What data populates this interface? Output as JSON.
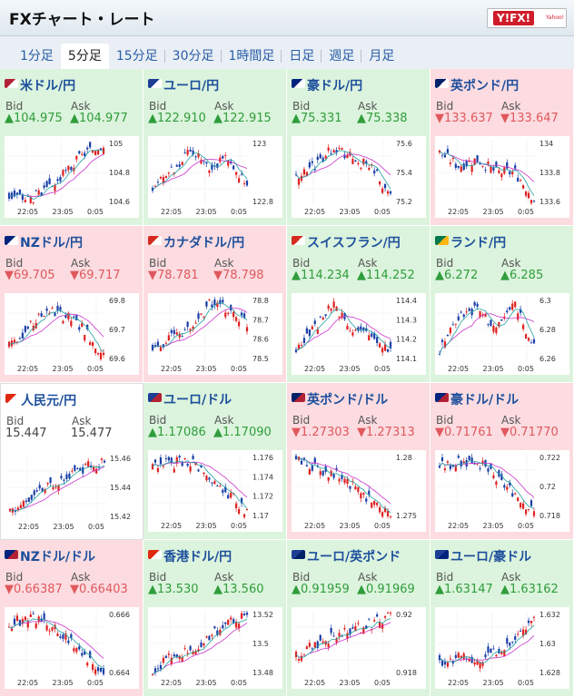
{
  "header": {
    "title": "FXチャート・レート",
    "logo": "Y!FX!",
    "logo_sub": "Yahoo!"
  },
  "tabs": [
    {
      "label": "1分足",
      "active": false
    },
    {
      "label": "5分足",
      "active": true
    },
    {
      "label": "15分足",
      "active": false
    },
    {
      "label": "30分足",
      "active": false
    },
    {
      "label": "1時間足",
      "active": false
    },
    {
      "label": "日足",
      "active": false
    },
    {
      "label": "週足",
      "active": false
    },
    {
      "label": "月足",
      "active": false
    }
  ],
  "labels": {
    "bid": "Bid",
    "ask": "Ask"
  },
  "colors": {
    "up_bg": "#dcf4dd",
    "down_bg": "#fcdce0",
    "up": "#2e9d3a",
    "down": "#e0585d",
    "link": "#1d4f9c",
    "candle_up": "#e02020",
    "candle_down": "#1a3ea8",
    "ma": "#cc33cc",
    "ma_short": "#20a0a0"
  },
  "pairs": [
    {
      "name": "米ドル/円",
      "flag_icon": "us-jp-flag",
      "dir": "up",
      "bid": "▲104.975",
      "ask": "▲104.977",
      "yticks": [
        "105",
        "104.8",
        "104.6"
      ],
      "xticks": [
        "22:05",
        "23:05",
        "0:05"
      ]
    },
    {
      "name": "ユーロ/円",
      "flag_icon": "eu-jp-flag",
      "dir": "up",
      "bid": "▲122.910",
      "ask": "▲122.915",
      "yticks": [
        "123",
        "122.8"
      ],
      "xticks": [
        "22:05",
        "23:05",
        "0:05"
      ]
    },
    {
      "name": "豪ドル/円",
      "flag_icon": "au-jp-flag",
      "dir": "up",
      "bid": "▲75.331",
      "ask": "▲75.338",
      "yticks": [
        "75.6",
        "75.4",
        "75.2"
      ],
      "xticks": [
        "22:05",
        "23:05",
        "0:05"
      ]
    },
    {
      "name": "英ポンド/円",
      "flag_icon": "gb-jp-flag",
      "dir": "down",
      "bid": "▼133.637",
      "ask": "▼133.647",
      "yticks": [
        "134",
        "133.8",
        "133.6"
      ],
      "xticks": [
        "22:05",
        "23:05",
        "0:05"
      ]
    },
    {
      "name": "NZドル/円",
      "flag_icon": "nz-jp-flag",
      "dir": "down",
      "bid": "▼69.705",
      "ask": "▼69.717",
      "yticks": [
        "69.8",
        "69.7",
        "69.6"
      ],
      "xticks": [
        "22:05",
        "23:05",
        "0:05"
      ]
    },
    {
      "name": "カナダドル/円",
      "flag_icon": "ca-jp-flag",
      "dir": "down",
      "bid": "▼78.781",
      "ask": "▼78.798",
      "yticks": [
        "78.8",
        "78.7",
        "78.6",
        "78.5"
      ],
      "xticks": [
        "22:05",
        "23:05",
        "0:05"
      ]
    },
    {
      "name": "スイスフラン/円",
      "flag_icon": "ch-jp-flag",
      "dir": "up",
      "bid": "▲114.234",
      "ask": "▲114.252",
      "yticks": [
        "114.4",
        "114.3",
        "114.2",
        "114.1"
      ],
      "xticks": [
        "22:05",
        "23:05",
        "0:05"
      ]
    },
    {
      "name": "ランド/円",
      "flag_icon": "za-jp-flag",
      "dir": "up",
      "bid": "▲6.272",
      "ask": "▲6.285",
      "yticks": [
        "6.3",
        "6.28",
        "6.26"
      ],
      "xticks": [
        "22:05",
        "23:05",
        "0:05"
      ]
    },
    {
      "name": "人民元/円",
      "flag_icon": "cn-jp-flag",
      "dir": "flat",
      "bid": "15.447",
      "ask": "15.477",
      "yticks": [
        "15.46",
        "15.44",
        "15.42"
      ],
      "xticks": [
        "22:05",
        "23:05",
        "0:05"
      ]
    },
    {
      "name": "ユーロ/ドル",
      "flag_icon": "eu-us-flag",
      "dir": "up",
      "bid": "▲1.17086",
      "ask": "▲1.17090",
      "yticks": [
        "1.176",
        "1.174",
        "1.172",
        "1.17"
      ],
      "xticks": [
        "22:05",
        "23:05",
        "0:05"
      ]
    },
    {
      "name": "英ポンド/ドル",
      "flag_icon": "gb-us-flag",
      "dir": "down",
      "bid": "▼1.27303",
      "ask": "▼1.27313",
      "yticks": [
        "1.28",
        "1.275"
      ],
      "xticks": [
        "22:05",
        "23:05",
        "0:05"
      ]
    },
    {
      "name": "豪ドル/ドル",
      "flag_icon": "au-us-flag",
      "dir": "down",
      "bid": "▼0.71761",
      "ask": "▼0.71770",
      "yticks": [
        "0.722",
        "0.72",
        "0.718"
      ],
      "xticks": [
        "22:05",
        "23:05",
        "0:05"
      ]
    },
    {
      "name": "NZドル/ドル",
      "flag_icon": "nz-us-flag",
      "dir": "down",
      "bid": "▼0.66387",
      "ask": "▼0.66403",
      "yticks": [
        "0.666",
        "0.664"
      ],
      "xticks": [
        "22:05",
        "23:05",
        "0:05"
      ]
    },
    {
      "name": "香港ドル/円",
      "flag_icon": "hk-jp-flag",
      "dir": "up",
      "bid": "▲13.530",
      "ask": "▲13.560",
      "yticks": [
        "13.52",
        "13.5",
        "13.48"
      ],
      "xticks": [
        "22:05",
        "23:05",
        "0:05"
      ]
    },
    {
      "name": "ユーロ/英ポンド",
      "flag_icon": "eu-gb-flag",
      "dir": "up",
      "bid": "▲0.91959",
      "ask": "▲0.91969",
      "yticks": [
        "0.92",
        "0.918"
      ],
      "xticks": [
        "22:05",
        "23:05",
        "0:05"
      ]
    },
    {
      "name": "ユーロ/豪ドル",
      "flag_icon": "eu-au-flag",
      "dir": "up",
      "bid": "▲1.63147",
      "ask": "▲1.63162",
      "yticks": [
        "1.632",
        "1.63",
        "1.628"
      ],
      "xticks": [
        "22:05",
        "23:05",
        "0:05"
      ]
    }
  ]
}
